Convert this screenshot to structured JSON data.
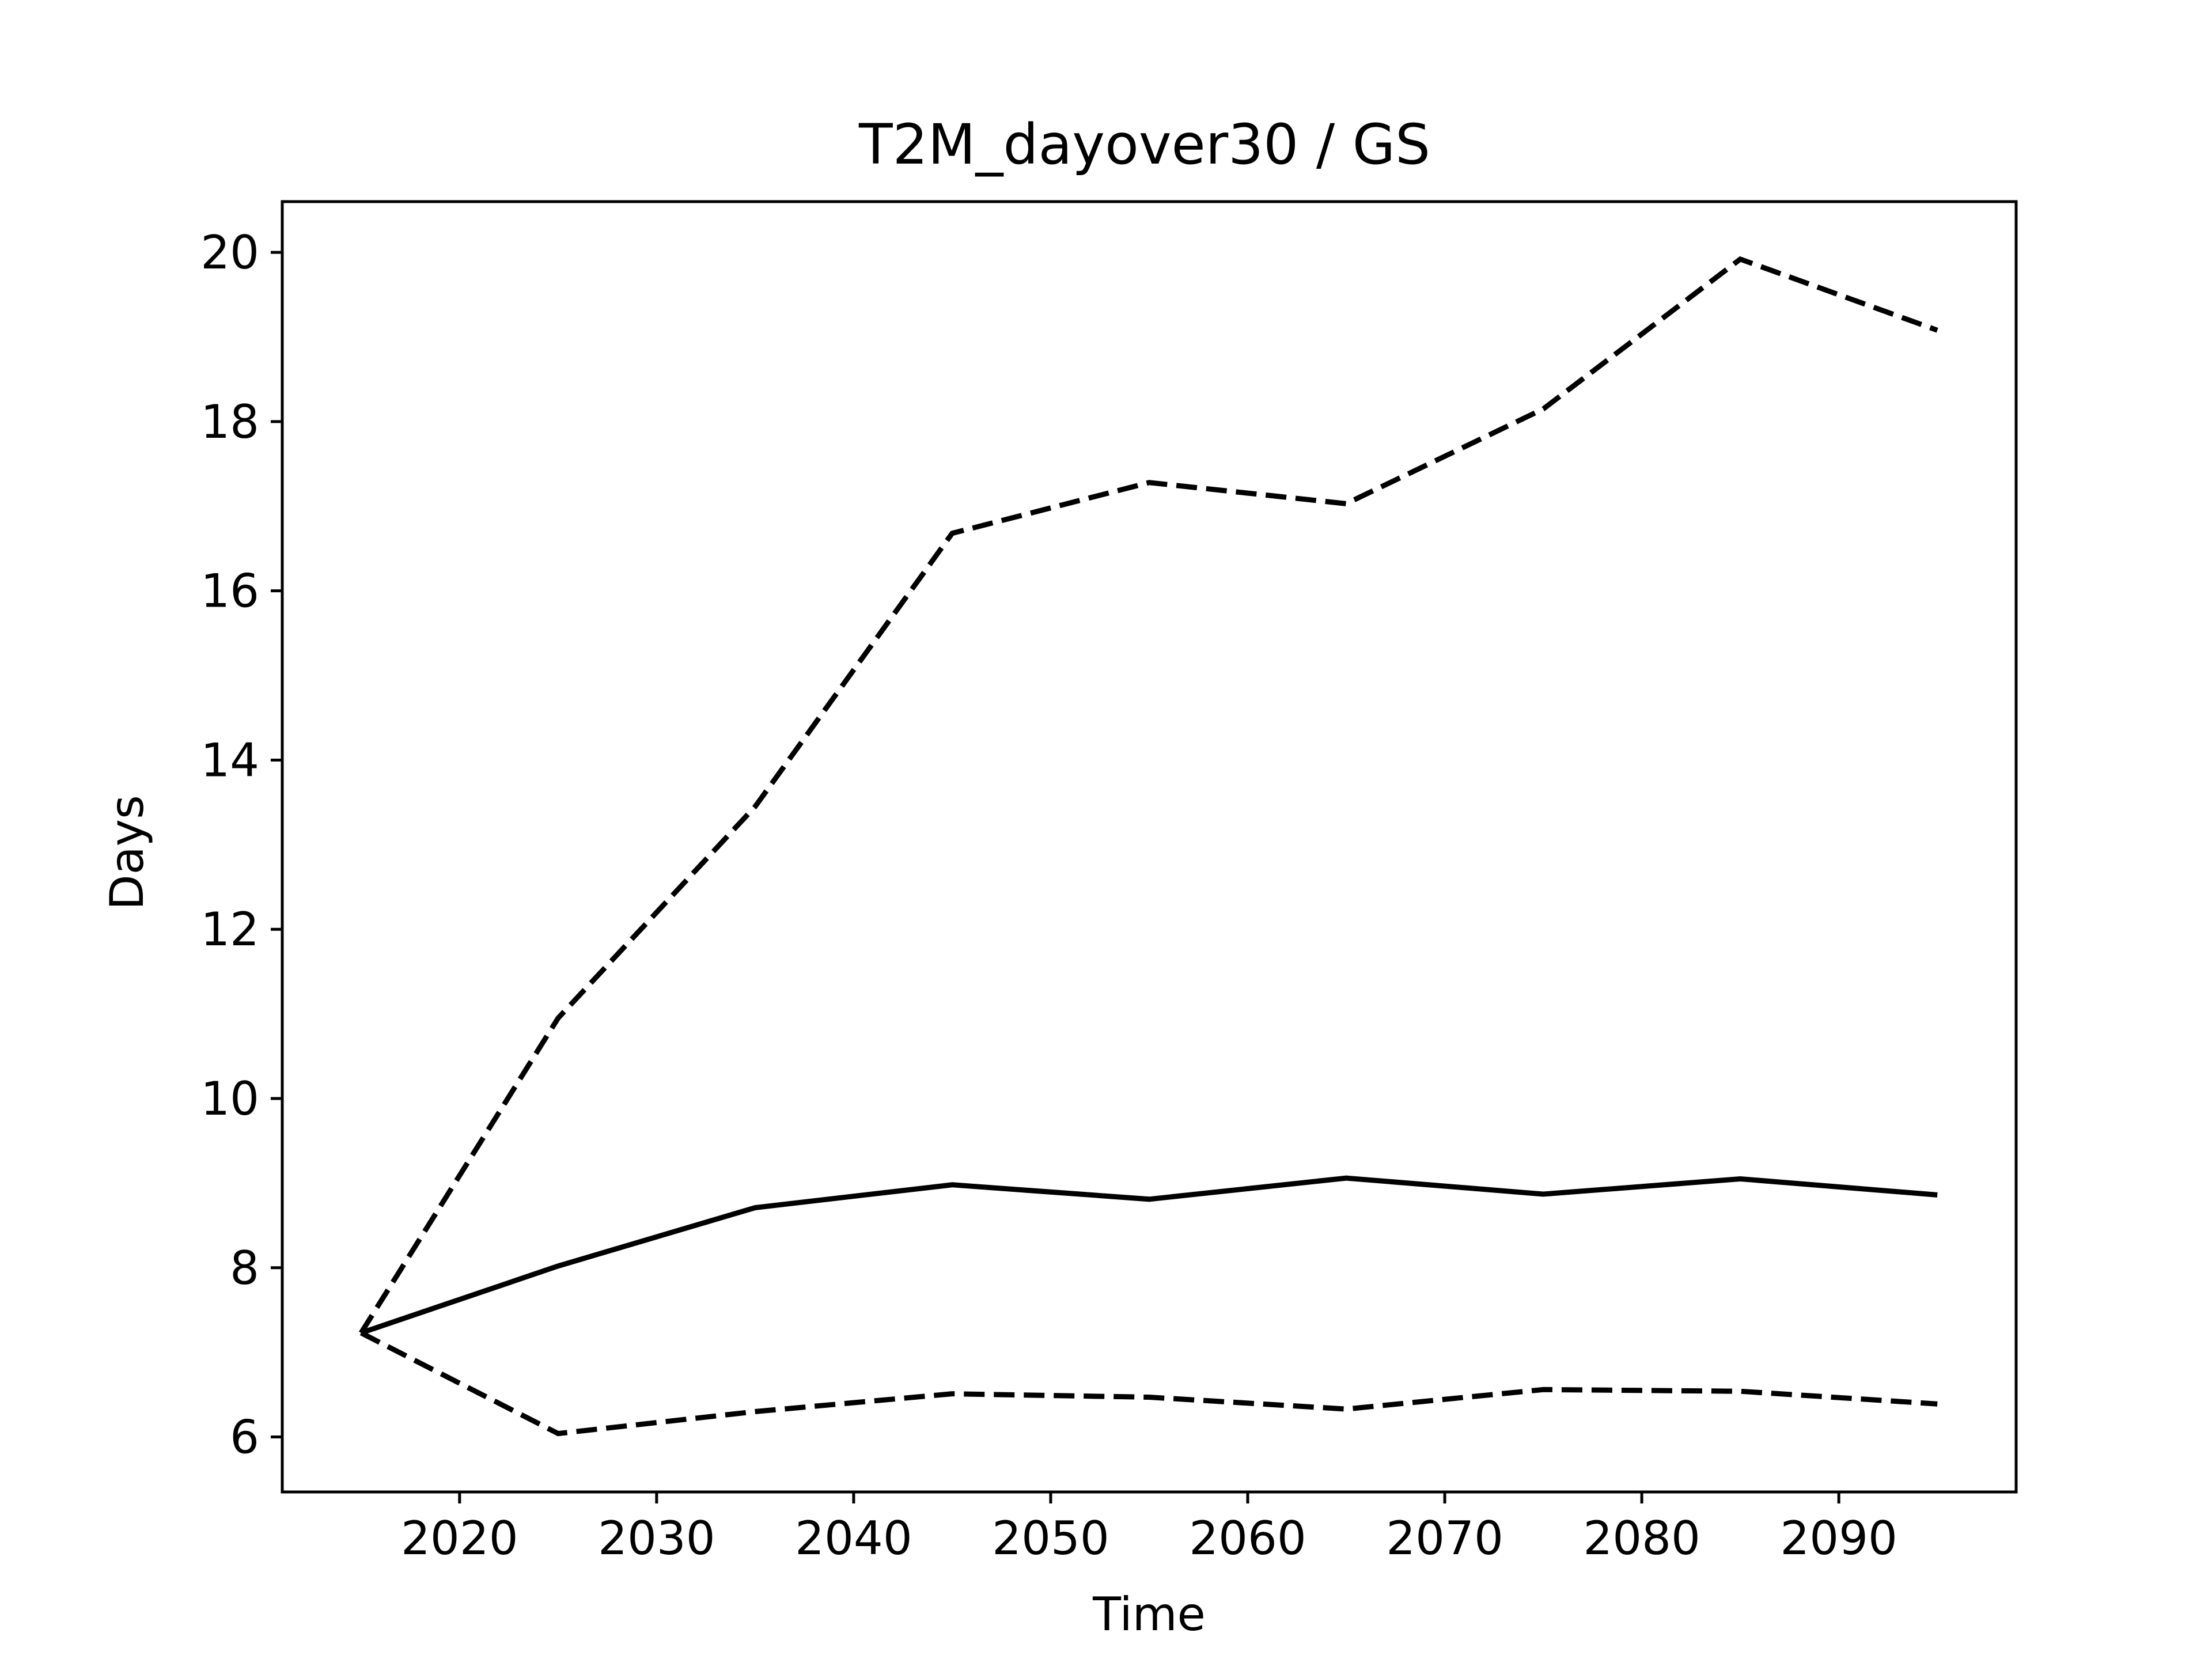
{
  "chart_data": {
    "type": "line",
    "title": "T2M_dayover30 / GS",
    "xlabel": "Time",
    "ylabel": "Days",
    "xlim": [
      2011,
      2099
    ],
    "ylim": [
      5.35,
      20.6
    ],
    "xticks": [
      2020,
      2030,
      2040,
      2050,
      2060,
      2070,
      2080,
      2090
    ],
    "yticks": [
      6,
      8,
      10,
      12,
      14,
      16,
      18,
      20
    ],
    "grid": false,
    "legend": "none",
    "x": [
      2015,
      2025,
      2035,
      2045,
      2055,
      2065,
      2075,
      2085,
      2095
    ],
    "series": [
      {
        "style": "solid",
        "color": "#000000",
        "values": [
          7.23,
          8.02,
          8.71,
          8.98,
          8.81,
          9.06,
          8.87,
          9.05,
          8.86
        ]
      },
      {
        "style": "dashed",
        "color": "#000000",
        "values": [
          7.23,
          10.95,
          13.45,
          16.68,
          17.28,
          17.03,
          18.15,
          19.92,
          19.08
        ]
      },
      {
        "style": "dashed",
        "color": "#000000",
        "values": [
          7.23,
          6.04,
          6.3,
          6.51,
          6.47,
          6.33,
          6.56,
          6.54,
          6.39
        ]
      }
    ]
  }
}
